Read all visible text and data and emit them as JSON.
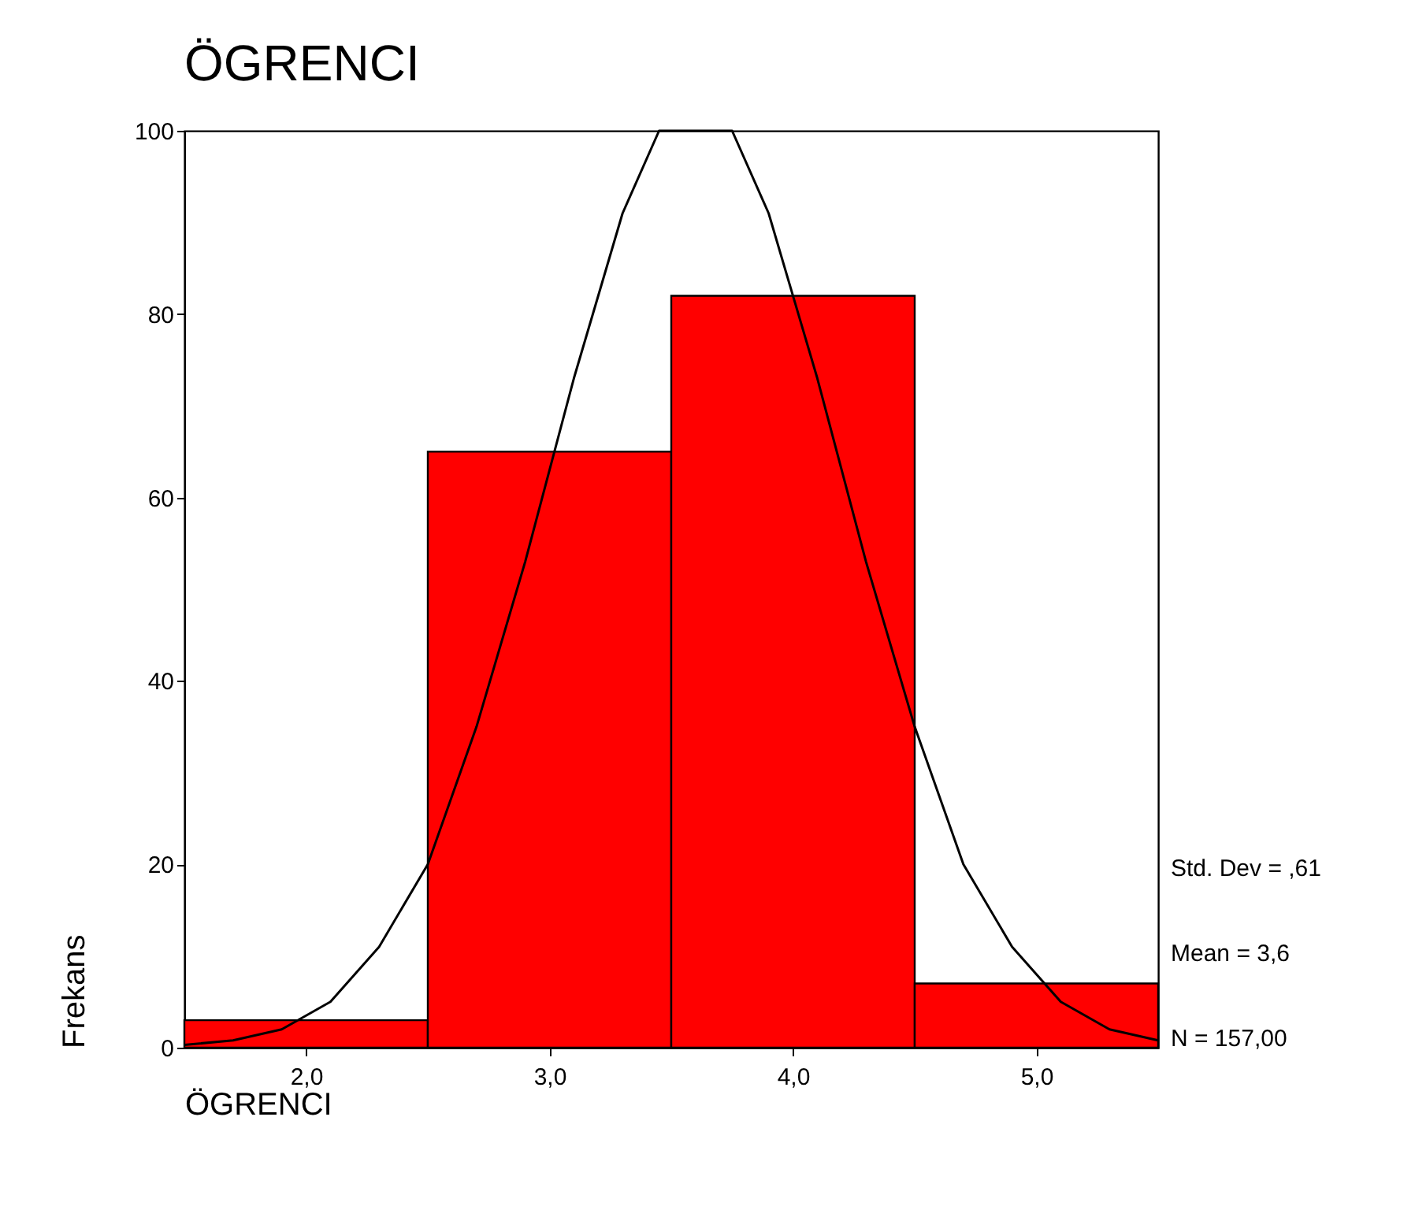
{
  "chart_data": {
    "type": "histogram",
    "title": "ÖGRENCI",
    "xlabel": "ÖGRENCI",
    "ylabel": "Frekans",
    "bins": [
      1.5,
      2.5,
      3.5,
      4.5,
      5.5
    ],
    "series": [
      {
        "type": "histogram",
        "color": "#ff0000",
        "values": [
          3,
          65,
          82,
          7
        ]
      },
      {
        "type": "line",
        "color": "#000000",
        "x": [
          1.5,
          1.7,
          1.9,
          2.1,
          2.3,
          2.5,
          2.7,
          2.9,
          3.1,
          3.3,
          3.45,
          3.75,
          3.9,
          4.1,
          4.3,
          4.5,
          4.7,
          4.9,
          5.1,
          5.3,
          5.5
        ],
        "values": [
          0.3,
          0.8,
          2,
          5,
          11,
          20,
          35,
          53,
          73,
          91,
          100,
          100,
          91,
          73,
          53,
          35,
          20,
          11,
          5,
          2,
          0.8
        ]
      }
    ],
    "xlim": [
      1.5,
      5.5
    ],
    "xticks": [
      {
        "value": 2,
        "label": "2,0"
      },
      {
        "value": 3,
        "label": "3,0"
      },
      {
        "value": 4,
        "label": "4,0"
      },
      {
        "value": 5,
        "label": "5,0"
      }
    ],
    "ylim": [
      0,
      100
    ],
    "yticks": [
      0,
      20,
      40,
      60,
      80,
      100
    ],
    "grid": false,
    "annotations": [
      "Std. Dev = ,61",
      "Mean = 3,6",
      "N = 157,00"
    ]
  }
}
